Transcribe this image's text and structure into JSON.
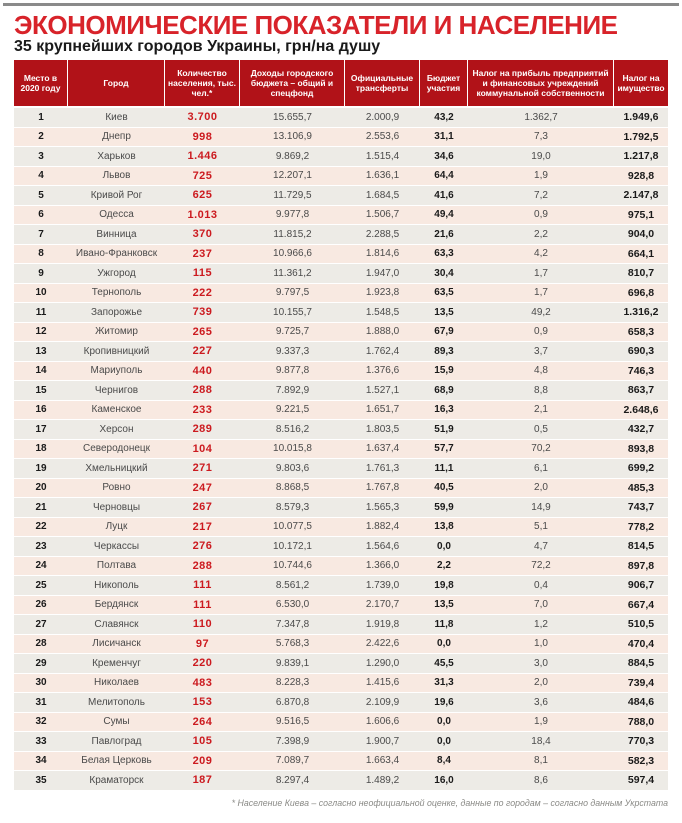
{
  "page": {
    "title": "ЭКОНОМИЧЕСКИЕ ПОКАЗАТЕЛИ И НАСЕЛЕНИЕ",
    "subtitle": "35 крупнейших городов Украины, грн/на душу",
    "footnote": "* Население Киева – согласно неофициальной оценке, данные по городам – согласно данным Укрстата"
  },
  "colors": {
    "title_red": "#d8232a",
    "header_red": "#b11218",
    "accent_red": "#cc1a1f",
    "row_gray": "#edebe6",
    "row_pink": "#f8e9e1",
    "top_rule_gray": "#8a8a8a"
  },
  "chart_data": {
    "type": "table",
    "title": "ЭКОНОМИЧЕСКИЕ ПОКАЗАТЕЛИ И НАСЕЛЕНИЕ",
    "subtitle": "35 крупнейших городов Украины, грн/на душу",
    "columns": [
      {
        "key": "place",
        "label": "Место в 2020 году"
      },
      {
        "key": "city",
        "label": "Город"
      },
      {
        "key": "population",
        "label": "Количество населения, тыс. чел.*"
      },
      {
        "key": "income",
        "label": "Доходы городского бюджета – общий и спецфонд"
      },
      {
        "key": "transfers",
        "label": "Официальные трансферты"
      },
      {
        "key": "participation",
        "label": "Бюджет участия"
      },
      {
        "key": "profit_tax",
        "label": "Налог на прибыль предприятий и финансовых учреждений коммунальной собственности"
      },
      {
        "key": "property_tax",
        "label": "Налог на имущество"
      }
    ],
    "rows": [
      {
        "place": "1",
        "city": "Киев",
        "population": "3.700",
        "income": "15.655,7",
        "transfers": "2.000,9",
        "participation": "43,2",
        "profit_tax": "1.362,7",
        "property_tax": "1.949,6"
      },
      {
        "place": "2",
        "city": "Днепр",
        "population": "998",
        "income": "13.106,9",
        "transfers": "2.553,6",
        "participation": "31,1",
        "profit_tax": "7,3",
        "property_tax": "1.792,5"
      },
      {
        "place": "3",
        "city": "Харьков",
        "population": "1.446",
        "income": "9.869,2",
        "transfers": "1.515,4",
        "participation": "34,6",
        "profit_tax": "19,0",
        "property_tax": "1.217,8"
      },
      {
        "place": "4",
        "city": "Львов",
        "population": "725",
        "income": "12.207,1",
        "transfers": "1.636,1",
        "participation": "64,4",
        "profit_tax": "1,9",
        "property_tax": "928,8"
      },
      {
        "place": "5",
        "city": "Кривой Рог",
        "population": "625",
        "income": "11.729,5",
        "transfers": "1.684,5",
        "participation": "41,6",
        "profit_tax": "7,2",
        "property_tax": "2.147,8"
      },
      {
        "place": "6",
        "city": "Одесса",
        "population": "1.013",
        "income": "9.977,8",
        "transfers": "1.506,7",
        "participation": "49,4",
        "profit_tax": "0,9",
        "property_tax": "975,1"
      },
      {
        "place": "7",
        "city": "Винница",
        "population": "370",
        "income": "11.815,2",
        "transfers": "2.288,5",
        "participation": "21,6",
        "profit_tax": "2,2",
        "property_tax": "904,0"
      },
      {
        "place": "8",
        "city": "Ивано-Франковск",
        "population": "237",
        "income": "10.966,6",
        "transfers": "1.814,6",
        "participation": "63,3",
        "profit_tax": "4,2",
        "property_tax": "664,1"
      },
      {
        "place": "9",
        "city": "Ужгород",
        "population": "115",
        "income": "11.361,2",
        "transfers": "1.947,0",
        "participation": "30,4",
        "profit_tax": "1,7",
        "property_tax": "810,7"
      },
      {
        "place": "10",
        "city": "Тернополь",
        "population": "222",
        "income": "9.797,5",
        "transfers": "1.923,8",
        "participation": "63,5",
        "profit_tax": "1,7",
        "property_tax": "696,8"
      },
      {
        "place": "11",
        "city": "Запорожье",
        "population": "739",
        "income": "10.155,7",
        "transfers": "1.548,5",
        "participation": "13,5",
        "profit_tax": "49,2",
        "property_tax": "1.316,2"
      },
      {
        "place": "12",
        "city": "Житомир",
        "population": "265",
        "income": "9.725,7",
        "transfers": "1.888,0",
        "participation": "67,9",
        "profit_tax": "0,9",
        "property_tax": "658,3"
      },
      {
        "place": "13",
        "city": "Кропивницкий",
        "population": "227",
        "income": "9.337,3",
        "transfers": "1.762,4",
        "participation": "89,3",
        "profit_tax": "3,7",
        "property_tax": "690,3"
      },
      {
        "place": "14",
        "city": "Мариуполь",
        "population": "440",
        "income": "9.877,8",
        "transfers": "1.376,6",
        "participation": "15,9",
        "profit_tax": "4,8",
        "property_tax": "746,3"
      },
      {
        "place": "15",
        "city": "Чернигов",
        "population": "288",
        "income": "7.892,9",
        "transfers": "1.527,1",
        "participation": "68,9",
        "profit_tax": "8,8",
        "property_tax": "863,7"
      },
      {
        "place": "16",
        "city": "Каменское",
        "population": "233",
        "income": "9.221,5",
        "transfers": "1.651,7",
        "participation": "16,3",
        "profit_tax": "2,1",
        "property_tax": "2.648,6"
      },
      {
        "place": "17",
        "city": "Херсон",
        "population": "289",
        "income": "8.516,2",
        "transfers": "1.803,5",
        "participation": "51,9",
        "profit_tax": "0,5",
        "property_tax": "432,7"
      },
      {
        "place": "18",
        "city": "Северодонецк",
        "population": "104",
        "income": "10.015,8",
        "transfers": "1.637,4",
        "participation": "57,7",
        "profit_tax": "70,2",
        "property_tax": "893,8"
      },
      {
        "place": "19",
        "city": "Хмельницкий",
        "population": "271",
        "income": "9.803,6",
        "transfers": "1.761,3",
        "participation": "11,1",
        "profit_tax": "6,1",
        "property_tax": "699,2"
      },
      {
        "place": "20",
        "city": "Ровно",
        "population": "247",
        "income": "8.868,5",
        "transfers": "1.767,8",
        "participation": "40,5",
        "profit_tax": "2,0",
        "property_tax": "485,3"
      },
      {
        "place": "21",
        "city": "Черновцы",
        "population": "267",
        "income": "8.579,3",
        "transfers": "1.565,3",
        "participation": "59,9",
        "profit_tax": "14,9",
        "property_tax": "743,7"
      },
      {
        "place": "22",
        "city": "Луцк",
        "population": "217",
        "income": "10.077,5",
        "transfers": "1.882,4",
        "participation": "13,8",
        "profit_tax": "5,1",
        "property_tax": "778,2"
      },
      {
        "place": "23",
        "city": "Черкассы",
        "population": "276",
        "income": "10.172,1",
        "transfers": "1.564,6",
        "participation": "0,0",
        "profit_tax": "4,7",
        "property_tax": "814,5"
      },
      {
        "place": "24",
        "city": "Полтава",
        "population": "288",
        "income": "10.744,6",
        "transfers": "1.366,0",
        "participation": "2,2",
        "profit_tax": "72,2",
        "property_tax": "897,8"
      },
      {
        "place": "25",
        "city": "Никополь",
        "population": "111",
        "income": "8.561,2",
        "transfers": "1.739,0",
        "participation": "19,8",
        "profit_tax": "0,4",
        "property_tax": "906,7"
      },
      {
        "place": "26",
        "city": "Бердянск",
        "population": "111",
        "income": "6.530,0",
        "transfers": "2.170,7",
        "participation": "13,5",
        "profit_tax": "7,0",
        "property_tax": "667,4"
      },
      {
        "place": "27",
        "city": "Славянск",
        "population": "110",
        "income": "7.347,8",
        "transfers": "1.919,8",
        "participation": "11,8",
        "profit_tax": "1,2",
        "property_tax": "510,5"
      },
      {
        "place": "28",
        "city": "Лисичанск",
        "population": "97",
        "income": "5.768,3",
        "transfers": "2.422,6",
        "participation": "0,0",
        "profit_tax": "1,0",
        "property_tax": "470,4"
      },
      {
        "place": "29",
        "city": "Кременчуг",
        "population": "220",
        "income": "9.839,1",
        "transfers": "1.290,0",
        "participation": "45,5",
        "profit_tax": "3,0",
        "property_tax": "884,5"
      },
      {
        "place": "30",
        "city": "Николаев",
        "population": "483",
        "income": "8.228,3",
        "transfers": "1.415,6",
        "participation": "31,3",
        "profit_tax": "2,0",
        "property_tax": "739,4"
      },
      {
        "place": "31",
        "city": "Мелитополь",
        "population": "153",
        "income": "6.870,8",
        "transfers": "2.109,9",
        "participation": "19,6",
        "profit_tax": "3,6",
        "property_tax": "484,6"
      },
      {
        "place": "32",
        "city": "Сумы",
        "population": "264",
        "income": "9.516,5",
        "transfers": "1.606,6",
        "participation": "0,0",
        "profit_tax": "1,9",
        "property_tax": "788,0"
      },
      {
        "place": "33",
        "city": "Павлоград",
        "population": "105",
        "income": "7.398,9",
        "transfers": "1.900,7",
        "participation": "0,0",
        "profit_tax": "18,4",
        "property_tax": "770,3"
      },
      {
        "place": "34",
        "city": "Белая Церковь",
        "population": "209",
        "income": "7.089,7",
        "transfers": "1.663,4",
        "participation": "8,4",
        "profit_tax": "8,1",
        "property_tax": "582,3"
      },
      {
        "place": "35",
        "city": "Краматорск",
        "population": "187",
        "income": "8.297,4",
        "transfers": "1.489,2",
        "participation": "16,0",
        "profit_tax": "8,6",
        "property_tax": "597,4"
      }
    ]
  }
}
